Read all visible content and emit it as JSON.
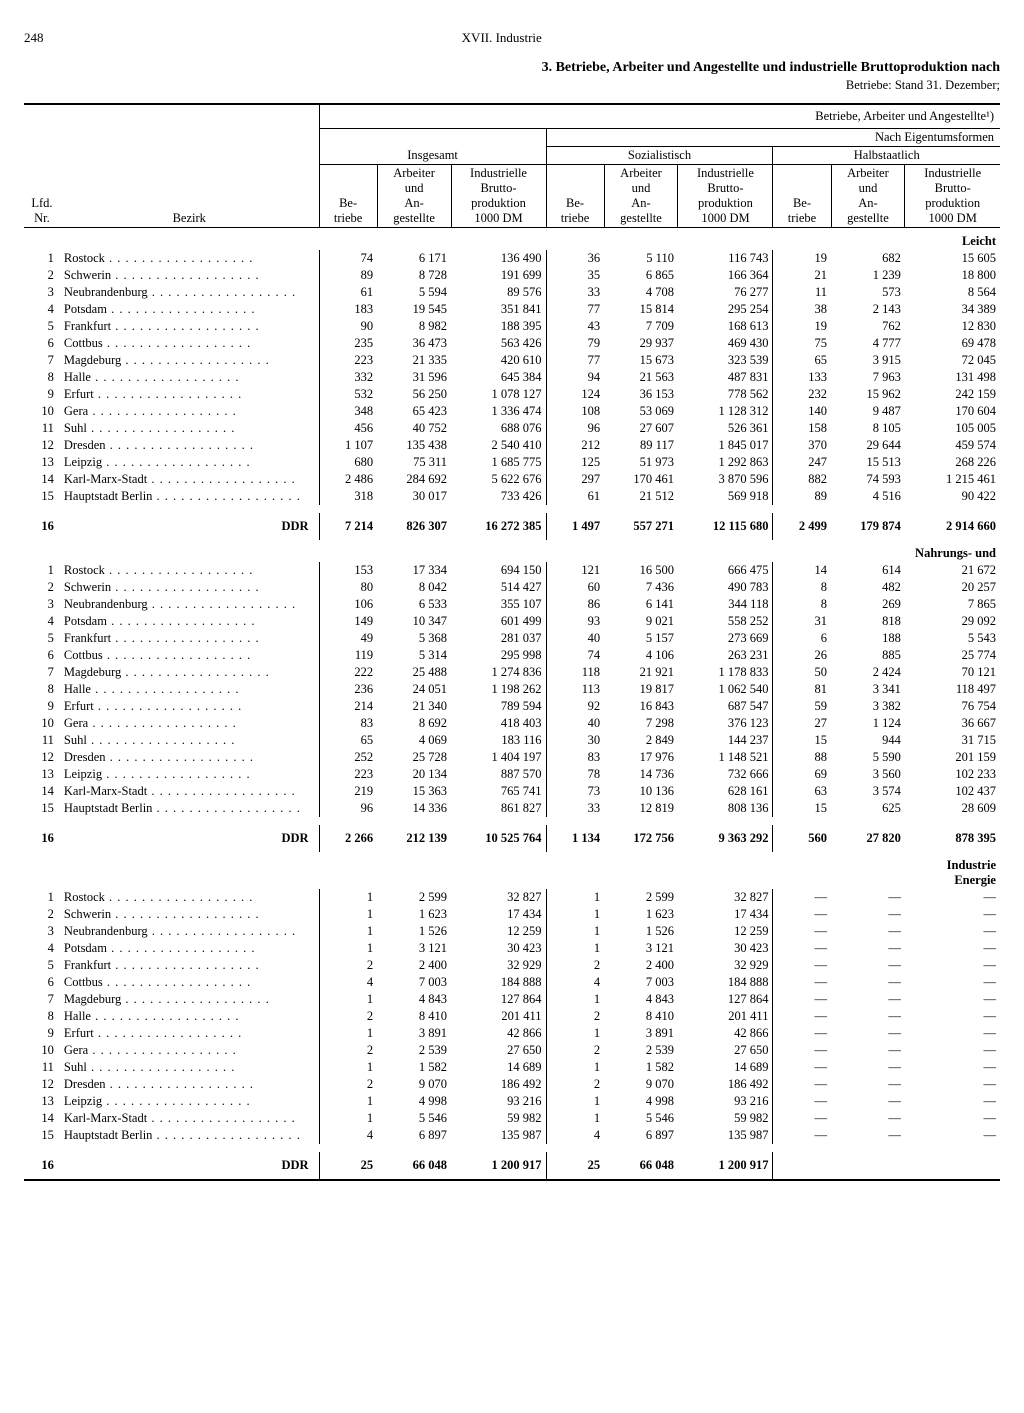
{
  "page_number": "248",
  "chapter": "XVII. Industrie",
  "title": "3. Betriebe, Arbeiter und Angestellte und industrielle Bruttoproduktion nach",
  "subtitle": "Betriebe: Stand 31. Dezember;",
  "super_header": "Betriebe, Arbeiter und Angestellte¹)",
  "group_total": "Insgesamt",
  "group_forms": "Nach Eigentumsformen",
  "group_soz": "Sozialistisch",
  "group_halb": "Halbstaatlich",
  "col_lfd": "Lfd.\nNr.",
  "col_bezirk": "Bezirk",
  "col_betriebe": "Be-\ntriebe",
  "col_arb": "Arbeiter\nund\nAn-\ngestellte",
  "col_prod": "Industrielle\nBrutto-\nproduktion\n1000 DM",
  "section_labels": {
    "a": "Leicht",
    "b": "Nahrungs- und",
    "c1": "Industrie",
    "c2": "Energie"
  },
  "ddr_label": "DDR",
  "districts": [
    "Rostock",
    "Schwerin",
    "Neubrandenburg",
    "Potsdam",
    "Frankfurt",
    "Cottbus",
    "Magdeburg",
    "Halle",
    "Erfurt",
    "Gera",
    "Suhl",
    "Dresden",
    "Leipzig",
    "Karl-Marx-Stadt",
    "Hauptstadt Berlin"
  ],
  "sections": {
    "a": {
      "rows": [
        [
          "74",
          "6 171",
          "136 490",
          "36",
          "5 110",
          "116 743",
          "19",
          "682",
          "15 605"
        ],
        [
          "89",
          "8 728",
          "191 699",
          "35",
          "6 865",
          "166 364",
          "21",
          "1 239",
          "18 800"
        ],
        [
          "61",
          "5 594",
          "89 576",
          "33",
          "4 708",
          "76 277",
          "11",
          "573",
          "8 564"
        ],
        [
          "183",
          "19 545",
          "351 841",
          "77",
          "15 814",
          "295 254",
          "38",
          "2 143",
          "34 389"
        ],
        [
          "90",
          "8 982",
          "188 395",
          "43",
          "7 709",
          "168 613",
          "19",
          "762",
          "12 830"
        ],
        [
          "235",
          "36 473",
          "563 426",
          "79",
          "29 937",
          "469 430",
          "75",
          "4 777",
          "69 478"
        ],
        [
          "223",
          "21 335",
          "420 610",
          "77",
          "15 673",
          "323 539",
          "65",
          "3 915",
          "72 045"
        ],
        [
          "332",
          "31 596",
          "645 384",
          "94",
          "21 563",
          "487 831",
          "133",
          "7 963",
          "131 498"
        ],
        [
          "532",
          "56 250",
          "1 078 127",
          "124",
          "36 153",
          "778 562",
          "232",
          "15 962",
          "242 159"
        ],
        [
          "348",
          "65 423",
          "1 336 474",
          "108",
          "53 069",
          "1 128 312",
          "140",
          "9 487",
          "170 604"
        ],
        [
          "456",
          "40 752",
          "688 076",
          "96",
          "27 607",
          "526 361",
          "158",
          "8 105",
          "105 005"
        ],
        [
          "1 107",
          "135 438",
          "2 540 410",
          "212",
          "89 117",
          "1 845 017",
          "370",
          "29 644",
          "459 574"
        ],
        [
          "680",
          "75 311",
          "1 685 775",
          "125",
          "51 973",
          "1 292 863",
          "247",
          "15 513",
          "268 226"
        ],
        [
          "2 486",
          "284 692",
          "5 622 676",
          "297",
          "170 461",
          "3 870 596",
          "882",
          "74 593",
          "1 215 461"
        ],
        [
          "318",
          "30 017",
          "733 426",
          "61",
          "21 512",
          "569 918",
          "89",
          "4 516",
          "90 422"
        ]
      ],
      "ddr": [
        "7 214",
        "826 307",
        "16 272 385",
        "1 497",
        "557 271",
        "12 115 680",
        "2 499",
        "179 874",
        "2 914 660"
      ]
    },
    "b": {
      "rows": [
        [
          "153",
          "17 334",
          "694 150",
          "121",
          "16 500",
          "666 475",
          "14",
          "614",
          "21 672"
        ],
        [
          "80",
          "8 042",
          "514 427",
          "60",
          "7 436",
          "490 783",
          "8",
          "482",
          "20 257"
        ],
        [
          "106",
          "6 533",
          "355 107",
          "86",
          "6 141",
          "344 118",
          "8",
          "269",
          "7 865"
        ],
        [
          "149",
          "10 347",
          "601 499",
          "93",
          "9 021",
          "558 252",
          "31",
          "818",
          "29 092"
        ],
        [
          "49",
          "5 368",
          "281 037",
          "40",
          "5 157",
          "273 669",
          "6",
          "188",
          "5 543"
        ],
        [
          "119",
          "5 314",
          "295 998",
          "74",
          "4 106",
          "263 231",
          "26",
          "885",
          "25 774"
        ],
        [
          "222",
          "25 488",
          "1 274 836",
          "118",
          "21 921",
          "1 178 833",
          "50",
          "2 424",
          "70 121"
        ],
        [
          "236",
          "24 051",
          "1 198 262",
          "113",
          "19 817",
          "1 062 540",
          "81",
          "3 341",
          "118 497"
        ],
        [
          "214",
          "21 340",
          "789 594",
          "92",
          "16 843",
          "687 547",
          "59",
          "3 382",
          "76 754"
        ],
        [
          "83",
          "8 692",
          "418 403",
          "40",
          "7 298",
          "376 123",
          "27",
          "1 124",
          "36 667"
        ],
        [
          "65",
          "4 069",
          "183 116",
          "30",
          "2 849",
          "144 237",
          "15",
          "944",
          "31 715"
        ],
        [
          "252",
          "25 728",
          "1 404 197",
          "83",
          "17 976",
          "1 148 521",
          "88",
          "5 590",
          "201 159"
        ],
        [
          "223",
          "20 134",
          "887 570",
          "78",
          "14 736",
          "732 666",
          "69",
          "3 560",
          "102 233"
        ],
        [
          "219",
          "15 363",
          "765 741",
          "73",
          "10 136",
          "628 161",
          "63",
          "3 574",
          "102 437"
        ],
        [
          "96",
          "14 336",
          "861 827",
          "33",
          "12 819",
          "808 136",
          "15",
          "625",
          "28 609"
        ]
      ],
      "ddr": [
        "2 266",
        "212 139",
        "10 525 764",
        "1 134",
        "172 756",
        "9 363 292",
        "560",
        "27 820",
        "878 395"
      ]
    },
    "c": {
      "rows": [
        [
          "1",
          "2 599",
          "32 827",
          "1",
          "2 599",
          "32 827",
          "—",
          "—",
          "—"
        ],
        [
          "1",
          "1 623",
          "17 434",
          "1",
          "1 623",
          "17 434",
          "—",
          "—",
          "—"
        ],
        [
          "1",
          "1 526",
          "12 259",
          "1",
          "1 526",
          "12 259",
          "—",
          "—",
          "—"
        ],
        [
          "1",
          "3 121",
          "30 423",
          "1",
          "3 121",
          "30 423",
          "—",
          "—",
          "—"
        ],
        [
          "2",
          "2 400",
          "32 929",
          "2",
          "2 400",
          "32 929",
          "—",
          "—",
          "—"
        ],
        [
          "4",
          "7 003",
          "184 888",
          "4",
          "7 003",
          "184 888",
          "—",
          "—",
          "—"
        ],
        [
          "1",
          "4 843",
          "127 864",
          "1",
          "4 843",
          "127 864",
          "—",
          "—",
          "—"
        ],
        [
          "2",
          "8 410",
          "201 411",
          "2",
          "8 410",
          "201 411",
          "—",
          "—",
          "—"
        ],
        [
          "1",
          "3 891",
          "42 866",
          "1",
          "3 891",
          "42 866",
          "—",
          "—",
          "—"
        ],
        [
          "2",
          "2 539",
          "27 650",
          "2",
          "2 539",
          "27 650",
          "—",
          "—",
          "—"
        ],
        [
          "1",
          "1 582",
          "14 689",
          "1",
          "1 582",
          "14 689",
          "—",
          "—",
          "—"
        ],
        [
          "2",
          "9 070",
          "186 492",
          "2",
          "9 070",
          "186 492",
          "—",
          "—",
          "—"
        ],
        [
          "1",
          "4 998",
          "93 216",
          "1",
          "4 998",
          "93 216",
          "—",
          "—",
          "—"
        ],
        [
          "1",
          "5 546",
          "59 982",
          "1",
          "5 546",
          "59 982",
          "—",
          "—",
          "—"
        ],
        [
          "4",
          "6 897",
          "135 987",
          "4",
          "6 897",
          "135 987",
          "—",
          "—",
          "—"
        ]
      ],
      "ddr": [
        "25",
        "66 048",
        "1 200 917",
        "25",
        "66 048",
        "1 200 917",
        "",
        "",
        ""
      ]
    }
  }
}
